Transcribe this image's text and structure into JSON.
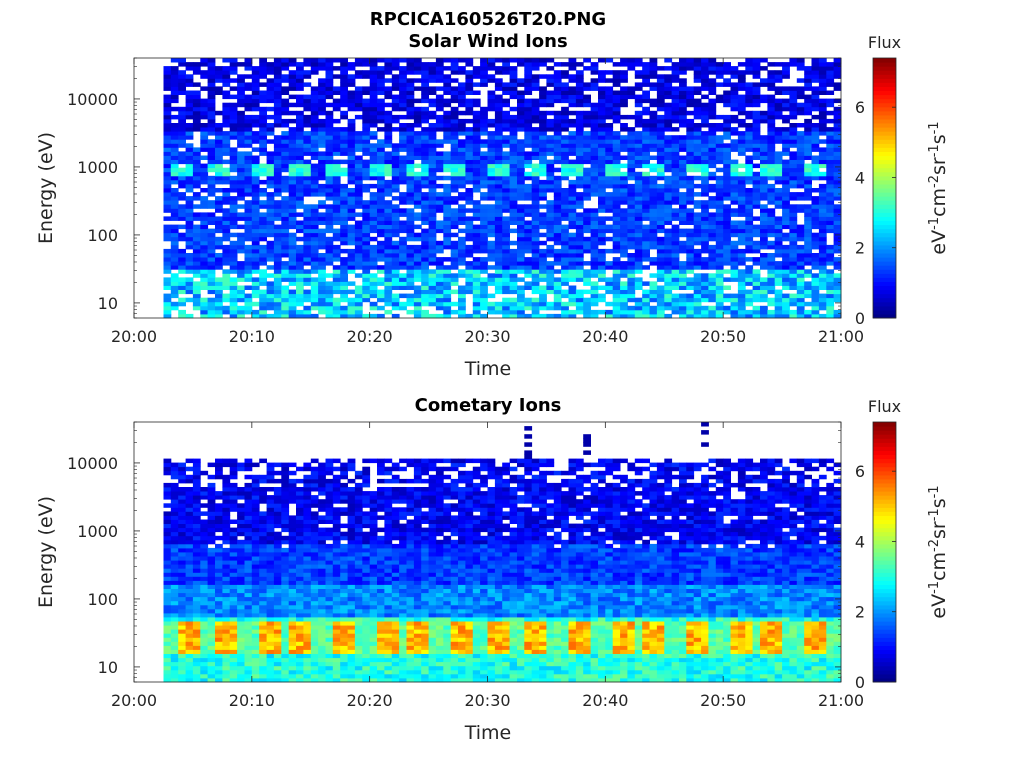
{
  "figure": {
    "title": "RPCICA160526T20.PNG"
  },
  "chart_data": [
    {
      "type": "heatmap",
      "title": "Solar Wind Ions",
      "xlabel": "Time",
      "ylabel": "Energy (eV)",
      "y_scale": "log",
      "x_ticks": [
        "20:00",
        "20:10",
        "20:20",
        "20:30",
        "20:40",
        "20:50",
        "21:00"
      ],
      "y_ticks": [
        "10",
        "100",
        "1000",
        "10000"
      ],
      "x_range": [
        "20:00",
        "21:00"
      ],
      "y_range": [
        6,
        40000
      ],
      "data_start": "20:02.5",
      "colorbar": {
        "title": "Flux",
        "label": "eV-1cm-2sr-1s-1",
        "range": [
          0,
          7.4
        ],
        "ticks": [
          "0",
          "2",
          "4",
          "6"
        ],
        "colormap": "jet"
      },
      "features": [
        {
          "description_value": "enhanced flux band",
          "energy_eV": [
            700,
            1000
          ],
          "periodic_blobs_at_min": [
            4,
            7,
            10.5,
            14,
            17,
            20.5,
            23.5,
            27,
            30.5,
            34,
            37,
            40.5,
            44,
            47.5,
            51,
            54,
            57.5
          ],
          "flux": 3
        },
        {
          "description_value": "low-energy band",
          "energy_eV": [
            6,
            30
          ],
          "flux": 2.5
        }
      ]
    },
    {
      "type": "heatmap",
      "title": "Cometary Ions",
      "xlabel": "Time",
      "ylabel": "Energy (eV)",
      "y_scale": "log",
      "x_ticks": [
        "20:00",
        "20:10",
        "20:20",
        "20:30",
        "20:40",
        "20:50",
        "21:00"
      ],
      "y_ticks": [
        "10",
        "100",
        "1000",
        "10000"
      ],
      "x_range": [
        "20:00",
        "21:00"
      ],
      "y_range": [
        6,
        40000
      ],
      "data_start": "20:02.5",
      "colorbar": {
        "title": "Flux",
        "label": "eV-1cm-2sr-1s-1",
        "range": [
          0,
          7.4
        ],
        "ticks": [
          "0",
          "2",
          "4",
          "6"
        ],
        "colormap": "jet"
      },
      "features": [
        {
          "description_value": "strong low-energy band",
          "energy_eV": [
            15,
            45
          ],
          "periodic_peaks_at_min": [
            4.5,
            7.5,
            11,
            14,
            17.5,
            21,
            24,
            27.5,
            30.5,
            34,
            37.5,
            41,
            44,
            47.5,
            51,
            54,
            57.5
          ],
          "peak_flux": 5.5
        },
        {
          "description_value": "high-energy spikes",
          "at_min": [
            33,
            38,
            48
          ],
          "energy_eV": [
            11000,
            40000
          ],
          "flux": 0.3
        }
      ]
    }
  ]
}
